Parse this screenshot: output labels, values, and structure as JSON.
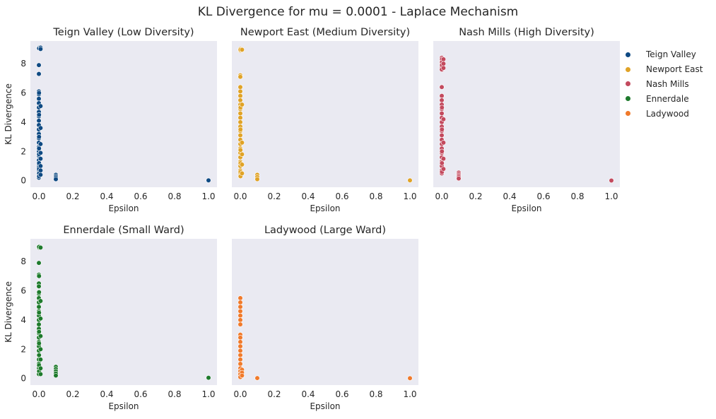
{
  "figure": {
    "title": "KL Divergence for mu = 0.0001 - Laplace Mechanism",
    "background": "#eaeaf2"
  },
  "legend": {
    "entries": [
      {
        "name": "Teign Valley",
        "color": "#0f4a83"
      },
      {
        "name": "Newport East",
        "color": "#e0a327"
      },
      {
        "name": "Nash Mills",
        "color": "#c34a5e"
      },
      {
        "name": "Ennerdale",
        "color": "#1e7a2c"
      },
      {
        "name": "Ladywood",
        "color": "#f07a2b"
      }
    ],
    "placement": "right, outside plots"
  },
  "chart_data": [
    {
      "type": "scatter",
      "title": "Teign Valley (Low Diversity)",
      "series_name": "Teign Valley",
      "color": "#0f4a83",
      "xlabel": "Epsilon",
      "ylabel": "KL Divergence",
      "xlim": [
        -0.05,
        1.05
      ],
      "ylim": [
        -0.45,
        9.55
      ],
      "xticks": [
        "0.0",
        "0.2",
        "0.4",
        "0.6",
        "0.8",
        "1.0"
      ],
      "yticks": [
        "0",
        "2",
        "4",
        "6",
        "8"
      ],
      "grid": false,
      "points": [
        {
          "x": 0.0001,
          "y": [
            9.1,
            9.05,
            7.9,
            7.3,
            6.1,
            5.9,
            5.6,
            5.3,
            5.0,
            4.7,
            4.4,
            4.1,
            3.8,
            3.5,
            3.2,
            2.9,
            2.6,
            2.3,
            2.0,
            1.7,
            1.4,
            1.1,
            0.9,
            0.7,
            0.5,
            0.3,
            0.2
          ]
        },
        {
          "x": 0.001,
          "y": [
            9.05,
            6.0,
            4.5,
            3.0,
            2.2,
            1.8,
            1.2,
            0.8,
            0.5,
            0.3
          ]
        },
        {
          "x": 0.01,
          "y": [
            9.1,
            9.0,
            5.1,
            3.6,
            2.5,
            1.9,
            1.5,
            1.0,
            0.7,
            0.4
          ]
        },
        {
          "x": 0.1,
          "y": [
            0.4,
            0.3,
            0.2,
            0.1
          ]
        },
        {
          "x": 1.0,
          "y": [
            0.02
          ]
        }
      ]
    },
    {
      "type": "scatter",
      "title": "Newport East (Medium Diversity)",
      "series_name": "Newport East",
      "color": "#e0a327",
      "xlabel": "Epsilon",
      "ylabel": "",
      "xlim": [
        -0.05,
        1.05
      ],
      "ylim": [
        -0.45,
        9.55
      ],
      "xticks": [
        "0.0",
        "0.2",
        "0.4",
        "0.6",
        "0.8",
        "1.0"
      ],
      "yticks": [],
      "grid": false,
      "points": [
        {
          "x": 0.0001,
          "y": [
            9.0,
            8.9,
            7.2,
            7.1,
            6.4,
            6.1,
            5.8,
            5.5,
            5.2,
            4.9,
            4.6,
            4.3,
            4.0,
            3.7,
            3.4,
            3.1,
            2.8,
            2.5,
            2.2,
            1.9,
            1.6,
            1.3,
            1.0,
            0.7,
            0.5,
            0.3
          ]
        },
        {
          "x": 0.001,
          "y": [
            8.95,
            5.0,
            3.5,
            2.1,
            1.2,
            0.6,
            0.3
          ]
        },
        {
          "x": 0.01,
          "y": [
            8.95,
            5.2,
            2.6,
            1.8,
            1.1,
            0.5
          ]
        },
        {
          "x": 0.1,
          "y": [
            0.4,
            0.25,
            0.1
          ]
        },
        {
          "x": 1.0,
          "y": [
            0.02
          ]
        }
      ]
    },
    {
      "type": "scatter",
      "title": "Nash Mills (High Diversity)",
      "series_name": "Nash Mills",
      "color": "#c34a5e",
      "xlabel": "Epsilon",
      "ylabel": "",
      "xlim": [
        -0.05,
        1.05
      ],
      "ylim": [
        -0.45,
        9.55
      ],
      "xticks": [
        "0.0",
        "0.2",
        "0.4",
        "0.6",
        "0.8",
        "1.0"
      ],
      "yticks": [],
      "grid": false,
      "points": [
        {
          "x": 0.0001,
          "y": [
            8.4,
            8.2,
            8.0,
            7.8,
            7.6,
            6.4,
            5.8,
            5.5,
            5.2,
            4.9,
            4.6,
            4.3,
            4.0,
            3.7,
            3.4,
            3.1,
            2.8,
            2.5,
            2.2,
            1.9,
            1.6,
            1.3,
            1.0,
            0.7,
            0.5
          ]
        },
        {
          "x": 0.001,
          "y": [
            8.3,
            8.1,
            7.9,
            5.0,
            3.5,
            2.0,
            1.2,
            0.6
          ]
        },
        {
          "x": 0.01,
          "y": [
            8.3,
            8.0,
            7.7,
            4.2,
            2.6,
            1.5,
            0.8
          ]
        },
        {
          "x": 0.1,
          "y": [
            0.55,
            0.45,
            0.35,
            0.25,
            0.15
          ]
        },
        {
          "x": 1.0,
          "y": [
            0.01
          ]
        }
      ]
    },
    {
      "type": "scatter",
      "title": "Ennerdale (Small Ward)",
      "series_name": "Ennerdale",
      "color": "#1e7a2c",
      "xlabel": "Epsilon",
      "ylabel": "KL Divergence",
      "xlim": [
        -0.05,
        1.05
      ],
      "ylim": [
        -0.45,
        9.55
      ],
      "xticks": [
        "0.0",
        "0.2",
        "0.4",
        "0.6",
        "0.8",
        "1.0"
      ],
      "yticks": [
        "0",
        "2",
        "4",
        "6",
        "8"
      ],
      "grid": false,
      "points": [
        {
          "x": 0.0001,
          "y": [
            9.0,
            8.95,
            7.9,
            7.1,
            6.5,
            6.3,
            5.8,
            5.5,
            5.2,
            4.9,
            4.6,
            4.3,
            4.0,
            3.7,
            3.4,
            3.1,
            2.8,
            2.5,
            2.2,
            1.9,
            1.6,
            1.3,
            1.0,
            0.7,
            0.5,
            0.3
          ]
        },
        {
          "x": 0.001,
          "y": [
            9.0,
            7.0,
            5.9,
            4.5,
            3.2,
            2.4,
            1.6,
            0.9,
            0.5
          ]
        },
        {
          "x": 0.01,
          "y": [
            8.95,
            5.3,
            4.1,
            2.9,
            2.0,
            1.3,
            0.7,
            0.3
          ]
        },
        {
          "x": 0.1,
          "y": [
            0.8,
            0.65,
            0.5,
            0.35,
            0.2
          ]
        },
        {
          "x": 1.0,
          "y": [
            0.05
          ]
        }
      ]
    },
    {
      "type": "scatter",
      "title": "Ladywood (Large Ward)",
      "series_name": "Ladywood",
      "color": "#f07a2b",
      "xlabel": "Epsilon",
      "ylabel": "",
      "xlim": [
        -0.05,
        1.05
      ],
      "ylim": [
        -0.45,
        9.55
      ],
      "xticks": [
        "0.0",
        "0.2",
        "0.4",
        "0.6",
        "0.8",
        "1.0"
      ],
      "yticks": [],
      "grid": false,
      "points": [
        {
          "x": 0.0001,
          "y": [
            5.5,
            5.2,
            4.9,
            4.6,
            4.3,
            4.0,
            3.7,
            3.0,
            2.8,
            2.5,
            2.2,
            1.9,
            1.6,
            1.3,
            1.0,
            0.7,
            0.5,
            0.3,
            0.1
          ]
        },
        {
          "x": 0.01,
          "y": [
            0.6,
            0.4,
            0.2
          ]
        },
        {
          "x": 0.1,
          "y": [
            0.03
          ]
        },
        {
          "x": 1.0,
          "y": [
            0.02
          ]
        }
      ]
    }
  ]
}
